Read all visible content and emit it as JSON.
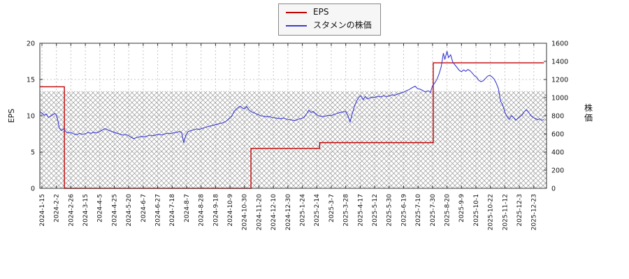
{
  "page": {
    "background": "#ffffff"
  },
  "legend": {
    "items": [
      {
        "label": "EPS",
        "color": "#c00000"
      },
      {
        "label": "スタメンの株価",
        "color": "#3b3bcf"
      }
    ]
  },
  "chart_data": {
    "type": "line",
    "title": "",
    "legend_position": "top-center",
    "grid": true,
    "x_axis": {
      "units": "tick_index",
      "tick_labels": [
        "2024-1-15",
        "2024-2-2",
        "2024-2-26",
        "2024-3-15",
        "2024-4-5",
        "2024-4-25",
        "2024-5-20",
        "2024-6-7",
        "2024-6-27",
        "2024-7-18",
        "2024-8-7",
        "2024-8-28",
        "2024-9-18",
        "2024-10-9",
        "2024-10-30",
        "2024-11-20",
        "2024-12-10",
        "2024-12-30",
        "2025-1-24",
        "2025-2-14",
        "2025-3-7",
        "2025-3-28",
        "2025-4-17",
        "2025-5-12",
        "2025-5-30",
        "2025-6-19",
        "2025-7-10",
        "2025-7-30",
        "2025-8-20",
        "2025-9-9",
        "2025-10-1",
        "2025-10-22",
        "2025-11-12",
        "2025-12-3",
        "2025-12-23"
      ]
    },
    "left_axis": {
      "label": "EPS",
      "min": 0,
      "max": 20,
      "ticks": [
        0,
        5,
        10,
        15,
        20
      ]
    },
    "right_axis": {
      "label": "株価",
      "min": 0,
      "max": 1600,
      "ticks": [
        0,
        200,
        400,
        600,
        800,
        1000,
        1200,
        1400,
        1600
      ]
    },
    "hatch_band": {
      "axis": "left",
      "from": 0,
      "to": 13.4
    },
    "series": [
      {
        "name": "EPS",
        "axis": "left",
        "color": "#c00000",
        "type": "step",
        "points": [
          [
            -0.15,
            14
          ],
          [
            1.55,
            14
          ],
          [
            1.55,
            0
          ],
          [
            14.45,
            0
          ],
          [
            14.45,
            5.5
          ],
          [
            19.2,
            5.5
          ],
          [
            19.2,
            6.3
          ],
          [
            27.05,
            6.3
          ],
          [
            27.05,
            17.3
          ],
          [
            34.7,
            17.3
          ]
        ]
      },
      {
        "name": "スタメンの株価",
        "axis": "right",
        "color": "#3b3bcf",
        "type": "line",
        "points": [
          [
            -0.15,
            845
          ],
          [
            0,
            830
          ],
          [
            0.15,
            805
          ],
          [
            0.3,
            820
          ],
          [
            0.45,
            782
          ],
          [
            0.6,
            795
          ],
          [
            0.75,
            812
          ],
          [
            0.9,
            826
          ],
          [
            1,
            808
          ],
          [
            1.1,
            748
          ],
          [
            1.2,
            665
          ],
          [
            1.35,
            638
          ],
          [
            1.5,
            656
          ],
          [
            1.65,
            624
          ],
          [
            1.8,
            610
          ],
          [
            2,
            616
          ],
          [
            2.2,
            600
          ],
          [
            2.4,
            590
          ],
          [
            2.6,
            606
          ],
          [
            2.8,
            596
          ],
          [
            3,
            601
          ],
          [
            3.2,
            616
          ],
          [
            3.4,
            606
          ],
          [
            3.6,
            618
          ],
          [
            3.8,
            612
          ],
          [
            4,
            626
          ],
          [
            4.2,
            646
          ],
          [
            4.35,
            658
          ],
          [
            4.5,
            650
          ],
          [
            4.65,
            636
          ],
          [
            4.8,
            628
          ],
          [
            5,
            618
          ],
          [
            5.2,
            606
          ],
          [
            5.4,
            598
          ],
          [
            5.6,
            588
          ],
          [
            5.8,
            593
          ],
          [
            6,
            580
          ],
          [
            6.2,
            561
          ],
          [
            6.35,
            546
          ],
          [
            6.5,
            558
          ],
          [
            6.7,
            566
          ],
          [
            6.9,
            572
          ],
          [
            7.1,
            568
          ],
          [
            7.3,
            578
          ],
          [
            7.5,
            585
          ],
          [
            7.7,
            579
          ],
          [
            7.9,
            590
          ],
          [
            8.1,
            596
          ],
          [
            8.3,
            589
          ],
          [
            8.5,
            600
          ],
          [
            8.7,
            607
          ],
          [
            8.9,
            603
          ],
          [
            9.1,
            612
          ],
          [
            9.3,
            618
          ],
          [
            9.5,
            626
          ],
          [
            9.65,
            616
          ],
          [
            9.8,
            502
          ],
          [
            9.95,
            588
          ],
          [
            10.1,
            625
          ],
          [
            10.3,
            638
          ],
          [
            10.5,
            646
          ],
          [
            10.7,
            655
          ],
          [
            10.9,
            650
          ],
          [
            11.1,
            662
          ],
          [
            11.3,
            672
          ],
          [
            11.5,
            681
          ],
          [
            11.7,
            690
          ],
          [
            11.9,
            698
          ],
          [
            12.1,
            706
          ],
          [
            12.3,
            715
          ],
          [
            12.5,
            723
          ],
          [
            12.7,
            736
          ],
          [
            12.9,
            762
          ],
          [
            13.1,
            792
          ],
          [
            13.3,
            852
          ],
          [
            13.5,
            882
          ],
          [
            13.7,
            906
          ],
          [
            13.85,
            886
          ],
          [
            14,
            876
          ],
          [
            14.15,
            902
          ],
          [
            14.3,
            866
          ],
          [
            14.5,
            842
          ],
          [
            14.7,
            830
          ],
          [
            14.9,
            816
          ],
          [
            15.1,
            801
          ],
          [
            15.3,
            796
          ],
          [
            15.5,
            788
          ],
          [
            15.7,
            793
          ],
          [
            15.9,
            781
          ],
          [
            16.1,
            778
          ],
          [
            16.3,
            772
          ],
          [
            16.5,
            768
          ],
          [
            16.7,
            776
          ],
          [
            16.9,
            762
          ],
          [
            17.1,
            758
          ],
          [
            17.3,
            752
          ],
          [
            17.5,
            748
          ],
          [
            17.7,
            761
          ],
          [
            17.9,
            769
          ],
          [
            18.1,
            779
          ],
          [
            18.3,
            822
          ],
          [
            18.45,
            862
          ],
          [
            18.6,
            836
          ],
          [
            18.75,
            848
          ],
          [
            18.9,
            826
          ],
          [
            19.05,
            806
          ],
          [
            19.2,
            796
          ],
          [
            19.4,
            790
          ],
          [
            19.6,
            796
          ],
          [
            19.8,
            806
          ],
          [
            20,
            801
          ],
          [
            20.2,
            816
          ],
          [
            20.4,
            826
          ],
          [
            20.6,
            836
          ],
          [
            20.8,
            843
          ],
          [
            21,
            846
          ],
          [
            21.15,
            801
          ],
          [
            21.3,
            732
          ],
          [
            21.45,
            822
          ],
          [
            21.6,
            902
          ],
          [
            21.75,
            962
          ],
          [
            21.9,
            1002
          ],
          [
            22.05,
            1022
          ],
          [
            22.2,
            976
          ],
          [
            22.35,
            1012
          ],
          [
            22.5,
            986
          ],
          [
            22.65,
            996
          ],
          [
            22.8,
            1006
          ],
          [
            23,
            1001
          ],
          [
            23.2,
            1016
          ],
          [
            23.4,
            1008
          ],
          [
            23.6,
            1021
          ],
          [
            23.8,
            1013
          ],
          [
            24,
            1018
          ],
          [
            24.2,
            1031
          ],
          [
            24.4,
            1026
          ],
          [
            24.6,
            1041
          ],
          [
            24.8,
            1051
          ],
          [
            25,
            1061
          ],
          [
            25.2,
            1076
          ],
          [
            25.4,
            1091
          ],
          [
            25.6,
            1111
          ],
          [
            25.8,
            1126
          ],
          [
            25.95,
            1101
          ],
          [
            26.1,
            1096
          ],
          [
            26.3,
            1081
          ],
          [
            26.5,
            1063
          ],
          [
            26.7,
            1076
          ],
          [
            26.85,
            1058
          ],
          [
            27,
            1131
          ],
          [
            27.15,
            1161
          ],
          [
            27.3,
            1201
          ],
          [
            27.45,
            1261
          ],
          [
            27.6,
            1341
          ],
          [
            27.75,
            1491
          ],
          [
            27.85,
            1421
          ],
          [
            28,
            1512
          ],
          [
            28.1,
            1442
          ],
          [
            28.25,
            1472
          ],
          [
            28.4,
            1391
          ],
          [
            28.55,
            1361
          ],
          [
            28.7,
            1331
          ],
          [
            28.85,
            1301
          ],
          [
            29,
            1286
          ],
          [
            29.15,
            1306
          ],
          [
            29.3,
            1291
          ],
          [
            29.45,
            1311
          ],
          [
            29.6,
            1296
          ],
          [
            29.75,
            1271
          ],
          [
            29.9,
            1241
          ],
          [
            30.05,
            1226
          ],
          [
            30.2,
            1191
          ],
          [
            30.35,
            1176
          ],
          [
            30.5,
            1186
          ],
          [
            30.65,
            1211
          ],
          [
            30.8,
            1236
          ],
          [
            30.95,
            1246
          ],
          [
            31.1,
            1231
          ],
          [
            31.25,
            1206
          ],
          [
            31.4,
            1161
          ],
          [
            31.55,
            1101
          ],
          [
            31.7,
            961
          ],
          [
            31.85,
            921
          ],
          [
            32,
            841
          ],
          [
            32.15,
            791
          ],
          [
            32.3,
            761
          ],
          [
            32.45,
            801
          ],
          [
            32.6,
            781
          ],
          [
            32.75,
            751
          ],
          [
            32.9,
            771
          ],
          [
            33.05,
            791
          ],
          [
            33.2,
            811
          ],
          [
            33.35,
            846
          ],
          [
            33.5,
            866
          ],
          [
            33.65,
            836
          ],
          [
            33.8,
            801
          ],
          [
            33.95,
            781
          ],
          [
            34.1,
            771
          ],
          [
            34.25,
            756
          ],
          [
            34.4,
            766
          ],
          [
            34.55,
            751
          ],
          [
            34.7,
            758
          ]
        ]
      }
    ]
  }
}
